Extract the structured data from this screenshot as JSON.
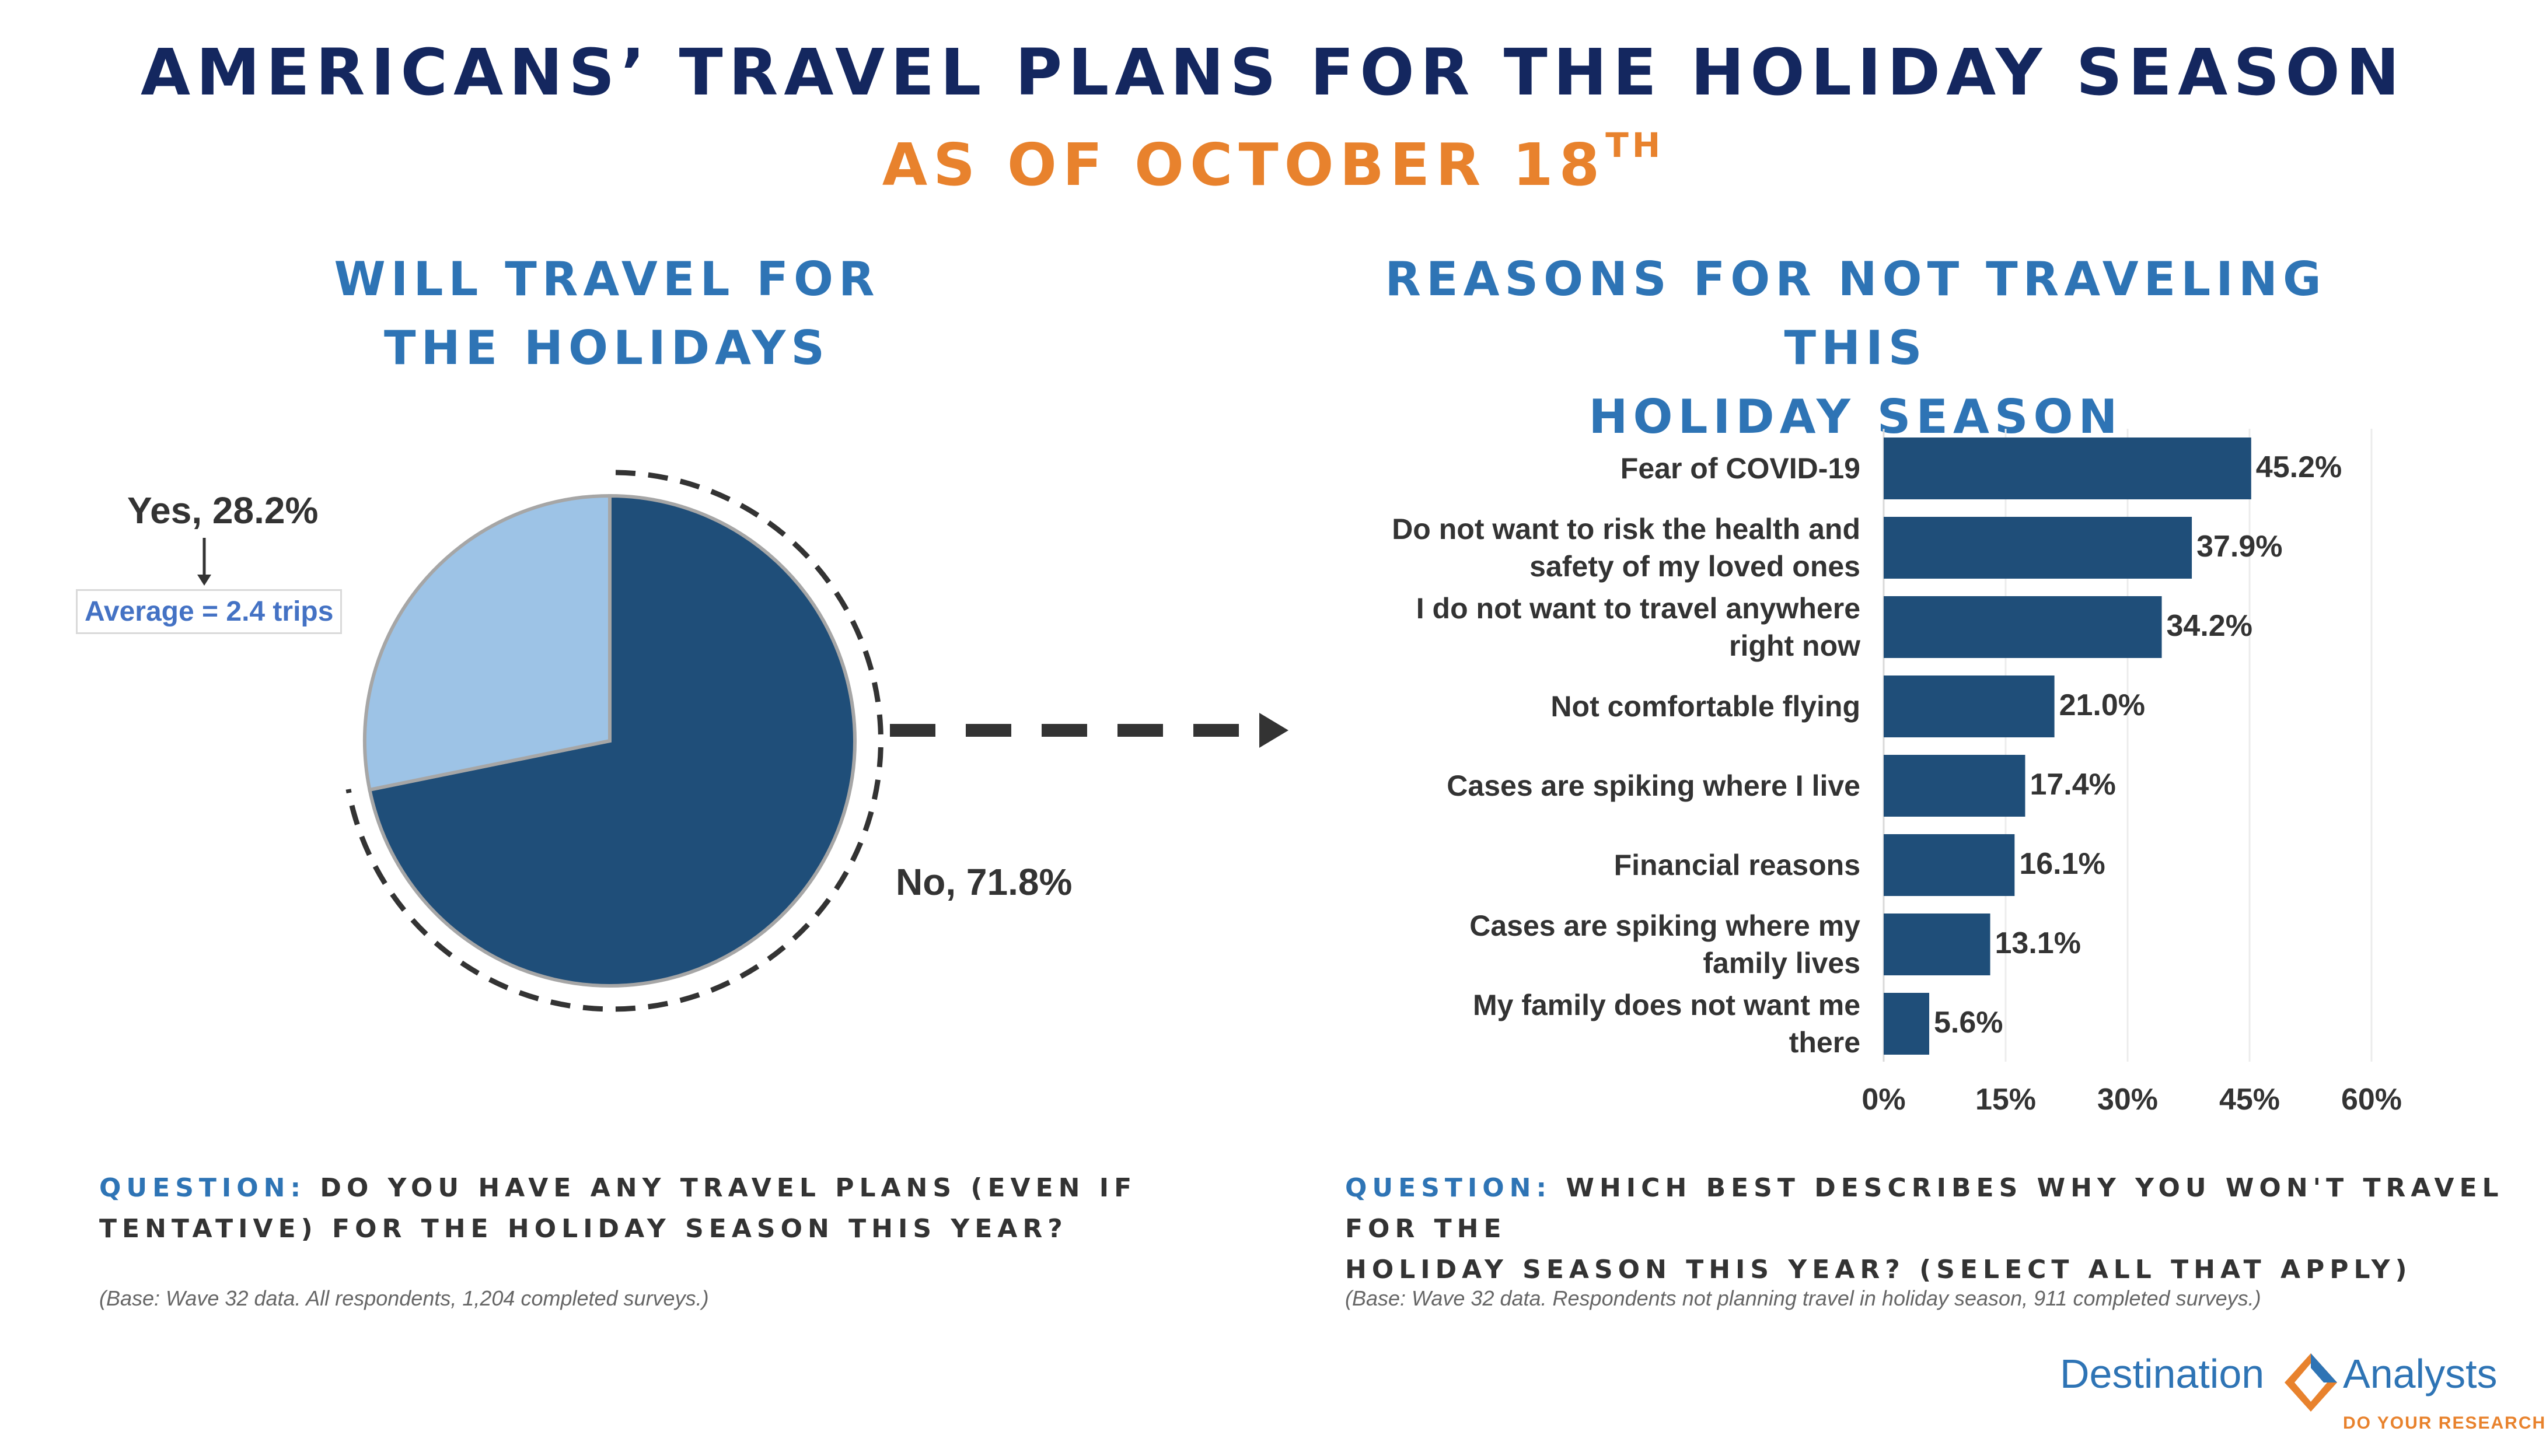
{
  "header": {
    "title": "AMERICANS’ TRAVEL PLANS FOR THE HOLIDAY SEASON",
    "subtitle_main": "AS OF OCTOBER 18",
    "subtitle_sup": "TH"
  },
  "left": {
    "section_title_line1": "WILL TRAVEL FOR",
    "section_title_line2": "THE HOLIDAYS",
    "yes_label": "Yes, 28.2%",
    "no_label": "No, 71.8%",
    "average_label": "Average = 2.4 trips",
    "question_prefix": "QUESTION:",
    "question_line1": "DO YOU HAVE ANY TRAVEL PLANS (EVEN IF",
    "question_line2": "TENTATIVE) FOR THE HOLIDAY SEASON THIS YEAR?",
    "base_note": "(Base: Wave 32 data. All respondents, 1,204 completed surveys.)"
  },
  "right": {
    "section_title_line1": "REASONS FOR NOT TRAVELING THIS",
    "section_title_line2": "HOLIDAY SEASON",
    "question_prefix": "QUESTION:",
    "question_line1": "WHICH BEST DESCRIBES WHY YOU WON'T TRAVEL FOR THE",
    "question_line2": "HOLIDAY SEASON THIS YEAR? (SELECT ALL THAT APPLY)",
    "base_note": "(Base: Wave 32 data. Respondents not planning travel in holiday season, 911 completed surveys.)"
  },
  "logo": {
    "word1": "Destination",
    "word2": "Analysts",
    "tagline": "DO YOUR RESEARCH"
  },
  "colors": {
    "navy": "#14275f",
    "orange": "#e8822d",
    "section_blue": "#2e74b5",
    "bar": "#1f4e79",
    "pie_yes": "#9dc3e6",
    "pie_no": "#1f4e79",
    "avg_text": "#4472c4",
    "logo_blue": "#2e74b5",
    "logo_orange": "#e8822d"
  },
  "chart_data": [
    {
      "type": "pie",
      "title": "WILL TRAVEL FOR THE HOLIDAYS",
      "slices": [
        {
          "label": "Yes",
          "value": 28.2
        },
        {
          "label": "No",
          "value": 71.8
        }
      ],
      "annotation": "Average = 2.4 trips"
    },
    {
      "type": "bar",
      "orientation": "horizontal",
      "title": "REASONS FOR NOT TRAVELING THIS HOLIDAY SEASON",
      "categories": [
        "Fear of  COVID-19",
        "Do not want to risk the health and safety of my loved ones",
        "I do not want to travel anywhere right now",
        "Not comfortable flying",
        "Cases are spiking where I live",
        "Financial reasons",
        "Cases are spiking where my family lives",
        "My family does not want me there"
      ],
      "category_lines": [
        [
          "Fear of  COVID-19"
        ],
        [
          "Do not want to risk the health and",
          "safety of my loved ones"
        ],
        [
          "I do not want to travel anywhere",
          "right now"
        ],
        [
          "Not comfortable flying"
        ],
        [
          "Cases are spiking where I live"
        ],
        [
          "Financial reasons"
        ],
        [
          "Cases are spiking where my",
          "family lives"
        ],
        [
          "My family does not want me",
          "there"
        ]
      ],
      "values": [
        45.2,
        37.9,
        34.2,
        21.0,
        17.4,
        16.1,
        13.1,
        5.6
      ],
      "value_labels": [
        "45.2%",
        "37.9%",
        "34.2%",
        "21.0%",
        "17.4%",
        "16.1%",
        "13.1%",
        "5.6%"
      ],
      "xlim": [
        0,
        60
      ],
      "ticks": [
        0,
        15,
        30,
        45,
        60
      ],
      "tick_labels": [
        "0%",
        "15%",
        "30%",
        "45%",
        "60%"
      ],
      "grid": true,
      "unit": "%"
    }
  ]
}
